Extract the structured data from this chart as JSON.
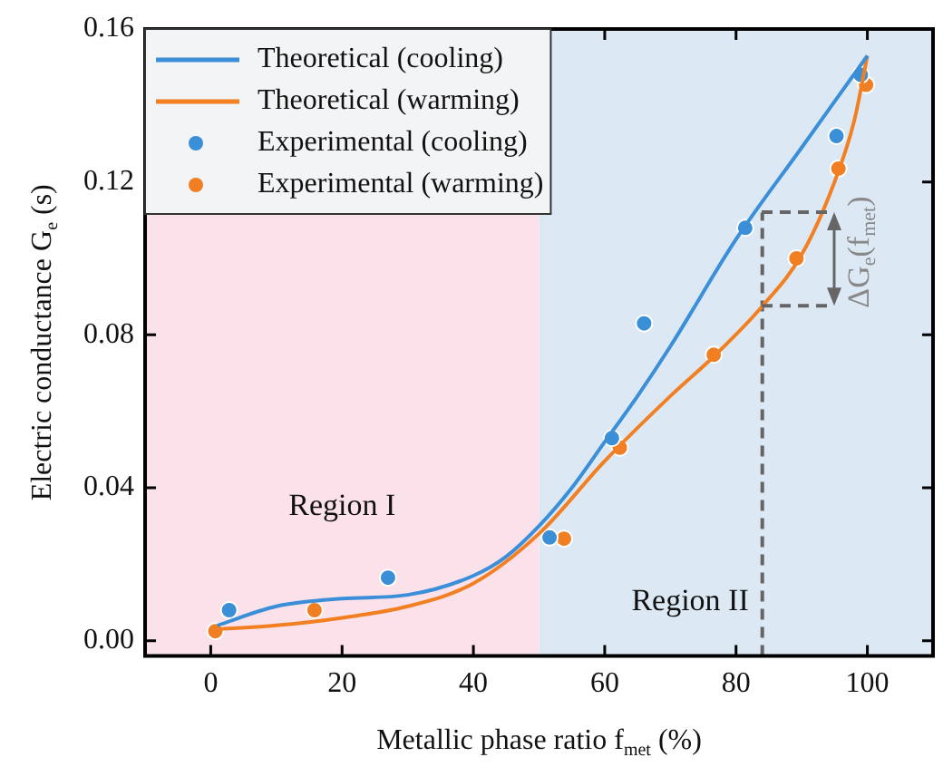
{
  "chart_data": {
    "type": "line",
    "xlabel": "Metallic phase ratio f$_{met}$ (%)",
    "ylabel": "Electric conductance G$_{e}$ (s)",
    "series": [
      {
        "name": "Theoretical (cooling)",
        "marker": "none",
        "color": "#3b8ed8",
        "x": [
          1,
          10,
          20,
          30,
          40,
          45,
          50,
          55,
          60,
          65,
          70,
          80,
          90,
          100
        ],
        "values": [
          0.004,
          0.009,
          0.011,
          0.012,
          0.017,
          0.022,
          0.03,
          0.04,
          0.052,
          0.064,
          0.077,
          0.105,
          0.129,
          0.153
        ]
      },
      {
        "name": "Theoretical (warming)",
        "marker": "none",
        "color": "#f28023",
        "x": [
          1,
          10,
          20,
          30,
          40,
          50,
          60,
          70,
          77,
          84,
          90,
          95,
          98,
          100
        ],
        "values": [
          0.003,
          0.004,
          0.006,
          0.009,
          0.015,
          0.028,
          0.047,
          0.064,
          0.075,
          0.0875,
          0.101,
          0.12,
          0.136,
          0.153
        ]
      },
      {
        "name": "Experimental (cooling)",
        "type": "scatter",
        "marker": "circle",
        "color": "#3a8fd6",
        "x": [
          2.8,
          27,
          51.6,
          61.1,
          66,
          81.4,
          95.3,
          99
        ],
        "values": [
          0.008,
          0.0165,
          0.027,
          0.053,
          0.083,
          0.108,
          0.132,
          0.148
        ]
      },
      {
        "name": "Experimental (warming)",
        "type": "scatter",
        "marker": "circle",
        "color": "#f07f24",
        "x": [
          0.7,
          15.8,
          53.8,
          62.3,
          76.6,
          89.2,
          95.6,
          99.8
        ],
        "values": [
          0.0025,
          0.008,
          0.0267,
          0.0505,
          0.0748,
          0.1,
          0.1235,
          0.1454
        ]
      }
    ],
    "xlim": [
      -10,
      110
    ],
    "xticks": [
      0,
      20,
      40,
      60,
      80,
      100
    ],
    "ylim": [
      -0.004,
      0.16
    ],
    "yticks": [
      {
        "value": 0,
        "label": "0.00"
      },
      {
        "value": 0.04,
        "label": "0.04"
      },
      {
        "value": 0.08,
        "label": "0.08"
      },
      {
        "value": 0.12,
        "label": "0.12"
      },
      {
        "value": 0.16,
        "label": "0.16"
      }
    ],
    "grid": false,
    "legend": "top left",
    "bands": [
      {
        "axis": "x",
        "from": -10,
        "to": 50,
        "color": "#fbe1ea"
      },
      {
        "axis": "x",
        "from": 50,
        "to": 110,
        "color": "#dce9f5"
      }
    ],
    "ref_lines": [
      {
        "axis": "x",
        "value": 84,
        "color": "#666666",
        "line_style": "dashed"
      }
    ],
    "annotations": [
      "Region I",
      "Region II",
      {
        "text": "ΔG$_{e}$(f$_{met}$)",
        "x": 84,
        "y": 0.0875
      }
    ]
  }
}
